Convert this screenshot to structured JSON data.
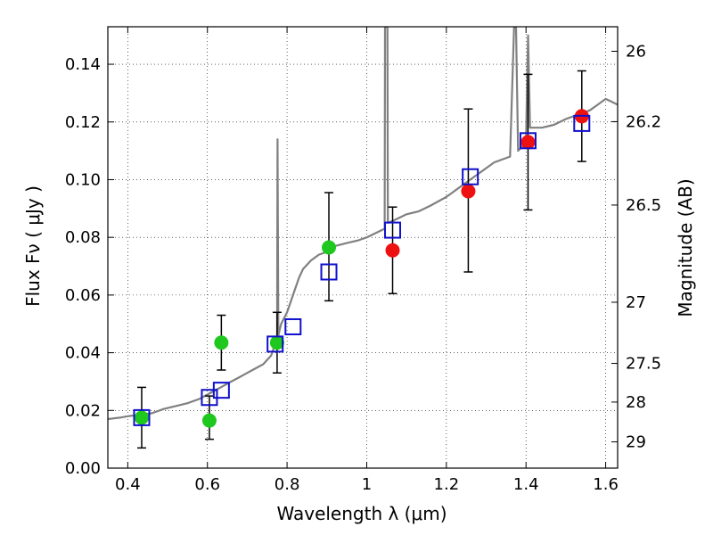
{
  "chart_data": {
    "type": "scatter",
    "xlabel": "Wavelength  λ (μm)",
    "ylabel": "Flux  Fν  ( μJy )",
    "ylabel_right": "Magnitude (AB)",
    "xlim": [
      0.35,
      1.63
    ],
    "ylim": [
      0.0,
      0.153
    ],
    "grid": true,
    "x_ticks": [
      {
        "value": 0.4,
        "label": "0.4"
      },
      {
        "value": 0.6,
        "label": "0.6"
      },
      {
        "value": 0.8,
        "label": "0.8"
      },
      {
        "value": 1.0,
        "label": "1"
      },
      {
        "value": 1.2,
        "label": "1.2"
      },
      {
        "value": 1.4,
        "label": "1.4"
      },
      {
        "value": 1.6,
        "label": "1.6"
      }
    ],
    "y_ticks": [
      {
        "value": 0.0,
        "label": "0.00"
      },
      {
        "value": 0.02,
        "label": "0.02"
      },
      {
        "value": 0.04,
        "label": "0.04"
      },
      {
        "value": 0.06,
        "label": "0.06"
      },
      {
        "value": 0.08,
        "label": "0.08"
      },
      {
        "value": 0.1,
        "label": "0.10"
      },
      {
        "value": 0.12,
        "label": "0.12"
      },
      {
        "value": 0.14,
        "label": "0.14"
      }
    ],
    "right_ticks": [
      {
        "flux": 0.1445,
        "label": "26"
      },
      {
        "flux": 0.1201,
        "label": "26.2"
      },
      {
        "flux": 0.0912,
        "label": "26.5"
      },
      {
        "flux": 0.0575,
        "label": "27"
      },
      {
        "flux": 0.0363,
        "label": "27.5"
      },
      {
        "flux": 0.0229,
        "label": "28"
      },
      {
        "flux": 0.0091,
        "label": "29"
      }
    ],
    "colors": {
      "model": "#808080",
      "green": "#1ec81e",
      "red": "#ee1111",
      "model_box": "#1010cc",
      "errorbar": "#000000"
    },
    "model_spectrum": [
      [
        0.35,
        0.017
      ],
      [
        0.38,
        0.0175
      ],
      [
        0.4,
        0.018
      ],
      [
        0.43,
        0.0185
      ],
      [
        0.46,
        0.019
      ],
      [
        0.49,
        0.0205
      ],
      [
        0.52,
        0.0215
      ],
      [
        0.55,
        0.0225
      ],
      [
        0.58,
        0.024
      ],
      [
        0.6,
        0.0255
      ],
      [
        0.62,
        0.027
      ],
      [
        0.64,
        0.0285
      ],
      [
        0.66,
        0.03
      ],
      [
        0.68,
        0.0315
      ],
      [
        0.7,
        0.033
      ],
      [
        0.72,
        0.0345
      ],
      [
        0.74,
        0.036
      ],
      [
        0.76,
        0.039
      ],
      [
        0.775,
        0.045
      ],
      [
        0.776,
        0.114
      ],
      [
        0.778,
        0.046
      ],
      [
        0.785,
        0.05
      ],
      [
        0.8,
        0.054
      ],
      [
        0.82,
        0.062
      ],
      [
        0.83,
        0.066
      ],
      [
        0.84,
        0.069
      ],
      [
        0.86,
        0.072
      ],
      [
        0.88,
        0.074
      ],
      [
        0.9,
        0.075
      ],
      [
        0.92,
        0.077
      ],
      [
        0.95,
        0.078
      ],
      [
        0.98,
        0.079
      ],
      [
        1.0,
        0.08
      ],
      [
        1.03,
        0.082
      ],
      [
        1.045,
        0.083
      ],
      [
        1.046,
        0.153
      ],
      [
        1.052,
        0.153
      ],
      [
        1.053,
        0.085
      ],
      [
        1.07,
        0.086
      ],
      [
        1.1,
        0.088
      ],
      [
        1.13,
        0.089
      ],
      [
        1.16,
        0.091
      ],
      [
        1.2,
        0.094
      ],
      [
        1.24,
        0.098
      ],
      [
        1.28,
        0.102
      ],
      [
        1.32,
        0.106
      ],
      [
        1.36,
        0.108
      ],
      [
        1.37,
        0.153
      ],
      [
        1.375,
        0.153
      ],
      [
        1.38,
        0.11
      ],
      [
        1.4,
        0.113
      ],
      [
        1.405,
        0.15
      ],
      [
        1.41,
        0.118
      ],
      [
        1.44,
        0.118
      ],
      [
        1.47,
        0.119
      ],
      [
        1.5,
        0.121
      ],
      [
        1.52,
        0.122
      ],
      [
        1.54,
        0.123
      ],
      [
        1.56,
        0.124
      ],
      [
        1.58,
        0.126
      ],
      [
        1.6,
        0.128
      ],
      [
        1.63,
        0.126
      ]
    ],
    "series": [
      {
        "color": "green",
        "marker": "circle",
        "points": [
          {
            "x": 0.435,
            "y": 0.0175,
            "err_lo": 0.007,
            "err_hi": 0.028
          },
          {
            "x": 0.605,
            "y": 0.0165,
            "err_lo": 0.01,
            "err_hi": 0.025
          },
          {
            "x": 0.635,
            "y": 0.0435,
            "err_lo": 0.034,
            "err_hi": 0.053
          },
          {
            "x": 0.775,
            "y": 0.0435,
            "err_lo": 0.033,
            "err_hi": 0.054
          },
          {
            "x": 0.905,
            "y": 0.0765,
            "err_lo": 0.058,
            "err_hi": 0.0955
          }
        ]
      },
      {
        "color": "red",
        "marker": "circle",
        "points": [
          {
            "x": 1.065,
            "y": 0.0755,
            "err_lo": 0.0605,
            "err_hi": 0.0905
          },
          {
            "x": 1.255,
            "y": 0.096,
            "err_lo": 0.068,
            "err_hi": 0.1245
          },
          {
            "x": 1.405,
            "y": 0.113,
            "err_lo": 0.0895,
            "err_hi": 0.1365
          },
          {
            "x": 1.54,
            "y": 0.122,
            "err_lo": 0.1063,
            "err_hi": 0.1377
          }
        ]
      },
      {
        "color": "model_box",
        "marker": "square",
        "points": [
          {
            "x": 0.435,
            "y": 0.0175
          },
          {
            "x": 0.605,
            "y": 0.0245
          },
          {
            "x": 0.635,
            "y": 0.027
          },
          {
            "x": 0.77,
            "y": 0.043
          },
          {
            "x": 0.815,
            "y": 0.049
          },
          {
            "x": 0.905,
            "y": 0.068
          },
          {
            "x": 1.065,
            "y": 0.0825
          },
          {
            "x": 1.26,
            "y": 0.101
          },
          {
            "x": 1.405,
            "y": 0.1135
          },
          {
            "x": 1.54,
            "y": 0.1195
          }
        ]
      }
    ]
  }
}
